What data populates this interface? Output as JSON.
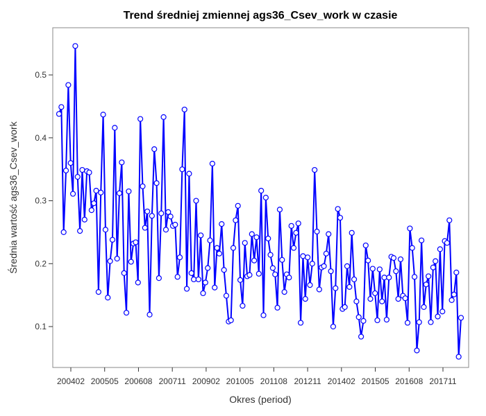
{
  "chart_data": {
    "type": "line",
    "title": "Trend średniej zmiennej ags36_Csev_work w czasie",
    "xlabel": "Okres (period)",
    "ylabel": "Średnia wartość ags36_Csev_work",
    "x_tick_labels": [
      "200402",
      "200505",
      "200608",
      "200711",
      "200902",
      "201005",
      "201108",
      "201211",
      "201402",
      "201505",
      "201608",
      "201711"
    ],
    "y_ticks": [
      0.1,
      0.2,
      0.3,
      0.4,
      0.5
    ],
    "y_tick_labels": [
      "0.1",
      "0.2",
      "0.3",
      "0.4",
      "0.5"
    ],
    "ylim": [
      0.035,
      0.575
    ],
    "grid": false,
    "legend": "none",
    "colors": {
      "line": "#0000ff",
      "marker": "#0000ff"
    },
    "series": [
      {
        "values": [
          0.438,
          0.449,
          0.25,
          0.348,
          0.484,
          0.36,
          0.311,
          0.546,
          0.338,
          0.252,
          0.349,
          0.27,
          0.347,
          0.345,
          0.285,
          0.296,
          0.316,
          0.155,
          0.313,
          0.437,
          0.254,
          0.146,
          0.204,
          0.238,
          0.416,
          0.208,
          0.312,
          0.361,
          0.185,
          0.122,
          0.315,
          0.203,
          0.232,
          0.234,
          0.17,
          0.43,
          0.323,
          0.257,
          0.283,
          0.119,
          0.276,
          0.382,
          0.328,
          0.177,
          0.28,
          0.433,
          0.254,
          0.282,
          0.275,
          0.26,
          0.262,
          0.179,
          0.21,
          0.35,
          0.445,
          0.16,
          0.343,
          0.185,
          0.175,
          0.3,
          0.175,
          0.245,
          0.153,
          0.17,
          0.193,
          0.237,
          0.359,
          0.162,
          0.225,
          0.216,
          0.263,
          0.19,
          0.149,
          0.108,
          0.11,
          0.225,
          0.269,
          0.292,
          0.174,
          0.133,
          0.233,
          0.18,
          0.182,
          0.247,
          0.205,
          0.242,
          0.184,
          0.316,
          0.118,
          0.305,
          0.24,
          0.214,
          0.193,
          0.183,
          0.13,
          0.286,
          0.206,
          0.155,
          0.183,
          0.178,
          0.26,
          0.225,
          0.249,
          0.264,
          0.106,
          0.212,
          0.144,
          0.21,
          0.166,
          0.2,
          0.349,
          0.251,
          0.159,
          0.194,
          0.196,
          0.216,
          0.247,
          0.188,
          0.1,
          0.161,
          0.287,
          0.273,
          0.128,
          0.131,
          0.196,
          0.163,
          0.249,
          0.175,
          0.14,
          0.115,
          0.084,
          0.109,
          0.229,
          0.205,
          0.144,
          0.192,
          0.153,
          0.11,
          0.191,
          0.14,
          0.178,
          0.111,
          0.178,
          0.211,
          0.209,
          0.188,
          0.144,
          0.207,
          0.149,
          0.145,
          0.106,
          0.256,
          0.225,
          0.179,
          0.062,
          0.107,
          0.237,
          0.131,
          0.167,
          0.18,
          0.107,
          0.194,
          0.204,
          0.116,
          0.223,
          0.124,
          0.236,
          0.233,
          0.269,
          0.142,
          0.151,
          0.186,
          0.052,
          0.114
        ]
      }
    ]
  }
}
